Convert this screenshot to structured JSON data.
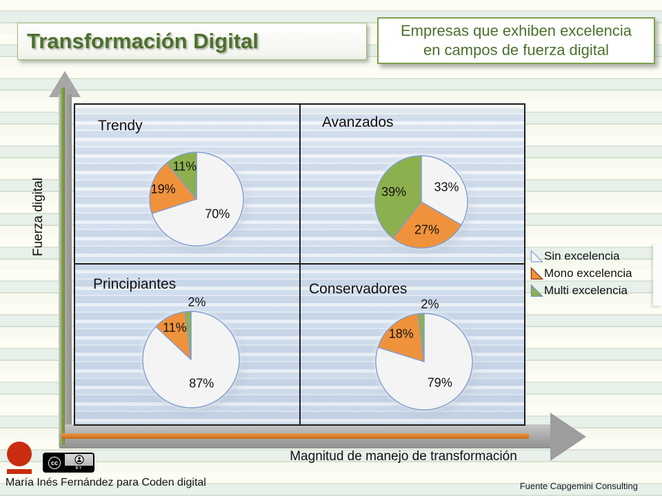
{
  "header": {
    "title": "Transformación Digital",
    "subtitle_line1": "Empresas que exhiben excelencia",
    "subtitle_line2": "en campos de fuerza digital"
  },
  "axes": {
    "y_label": "Fuerza digital",
    "x_label": "Magnitud de manejo de transformación"
  },
  "legend": [
    {
      "label": "Sin excelencia",
      "color": "#f4f4f4",
      "border": "#8fa9d8"
    },
    {
      "label": "Mono excelencia",
      "color": "#f0923c",
      "border": "#8e3a0e"
    },
    {
      "label": "Multi excelencia",
      "color": "#8db04e",
      "border": "#7191b4"
    }
  ],
  "colors": {
    "accent_text_green": "#4c702c",
    "slice_border": "#7e9ed2",
    "axis_gray": "#a6a6a6",
    "axis_green_stripe": "#76973c",
    "axis_orange_stripe": "#d9782a",
    "logo_red": "#c92c0e"
  },
  "footer": {
    "credit": "María Inés Fernández para Coden digital",
    "source": "Fuente Capgemini Consulting",
    "cc_label": "cc",
    "cc_by": "BY"
  },
  "chart_data": {
    "type": "pie",
    "title": "Empresas que exhiben excelencia en campos de fuerza digital",
    "x_axis_label": "Magnitud de manejo de transformación",
    "y_axis_label": "Fuerza digital",
    "series": [
      "Sin excelencia",
      "Mono excelencia",
      "Multi excelencia"
    ],
    "layout": "2x2 quadrant matrix, one pie per quadrant, slices clockwise from 12 o'clock",
    "quadrants": [
      {
        "name": "Trendy",
        "position": "top-left",
        "slices": [
          {
            "series": "Sin excelencia",
            "value": 70,
            "text": "70%"
          },
          {
            "series": "Mono excelencia",
            "value": 19,
            "text": "19%"
          },
          {
            "series": "Multi excelencia",
            "value": 11,
            "text": "11%"
          }
        ]
      },
      {
        "name": "Avanzados",
        "position": "top-right",
        "slices": [
          {
            "series": "Sin excelencia",
            "value": 33,
            "text": "33%"
          },
          {
            "series": "Mono excelencia",
            "value": 27,
            "text": "27%"
          },
          {
            "series": "Multi excelencia",
            "value": 39,
            "text": "39%"
          }
        ]
      },
      {
        "name": "Principiantes",
        "position": "bottom-left",
        "slices": [
          {
            "series": "Sin excelencia",
            "value": 87,
            "text": "87%"
          },
          {
            "series": "Mono excelencia",
            "value": 11,
            "text": "11%"
          },
          {
            "series": "Multi excelencia",
            "value": 2,
            "text": "2%"
          }
        ]
      },
      {
        "name": "Conservadores",
        "position": "bottom-right",
        "slices": [
          {
            "series": "Sin excelencia",
            "value": 79,
            "text": "79%"
          },
          {
            "series": "Mono excelencia",
            "value": 18,
            "text": "18%"
          },
          {
            "series": "Multi excelencia",
            "value": 2,
            "text": "2%"
          }
        ]
      }
    ]
  }
}
